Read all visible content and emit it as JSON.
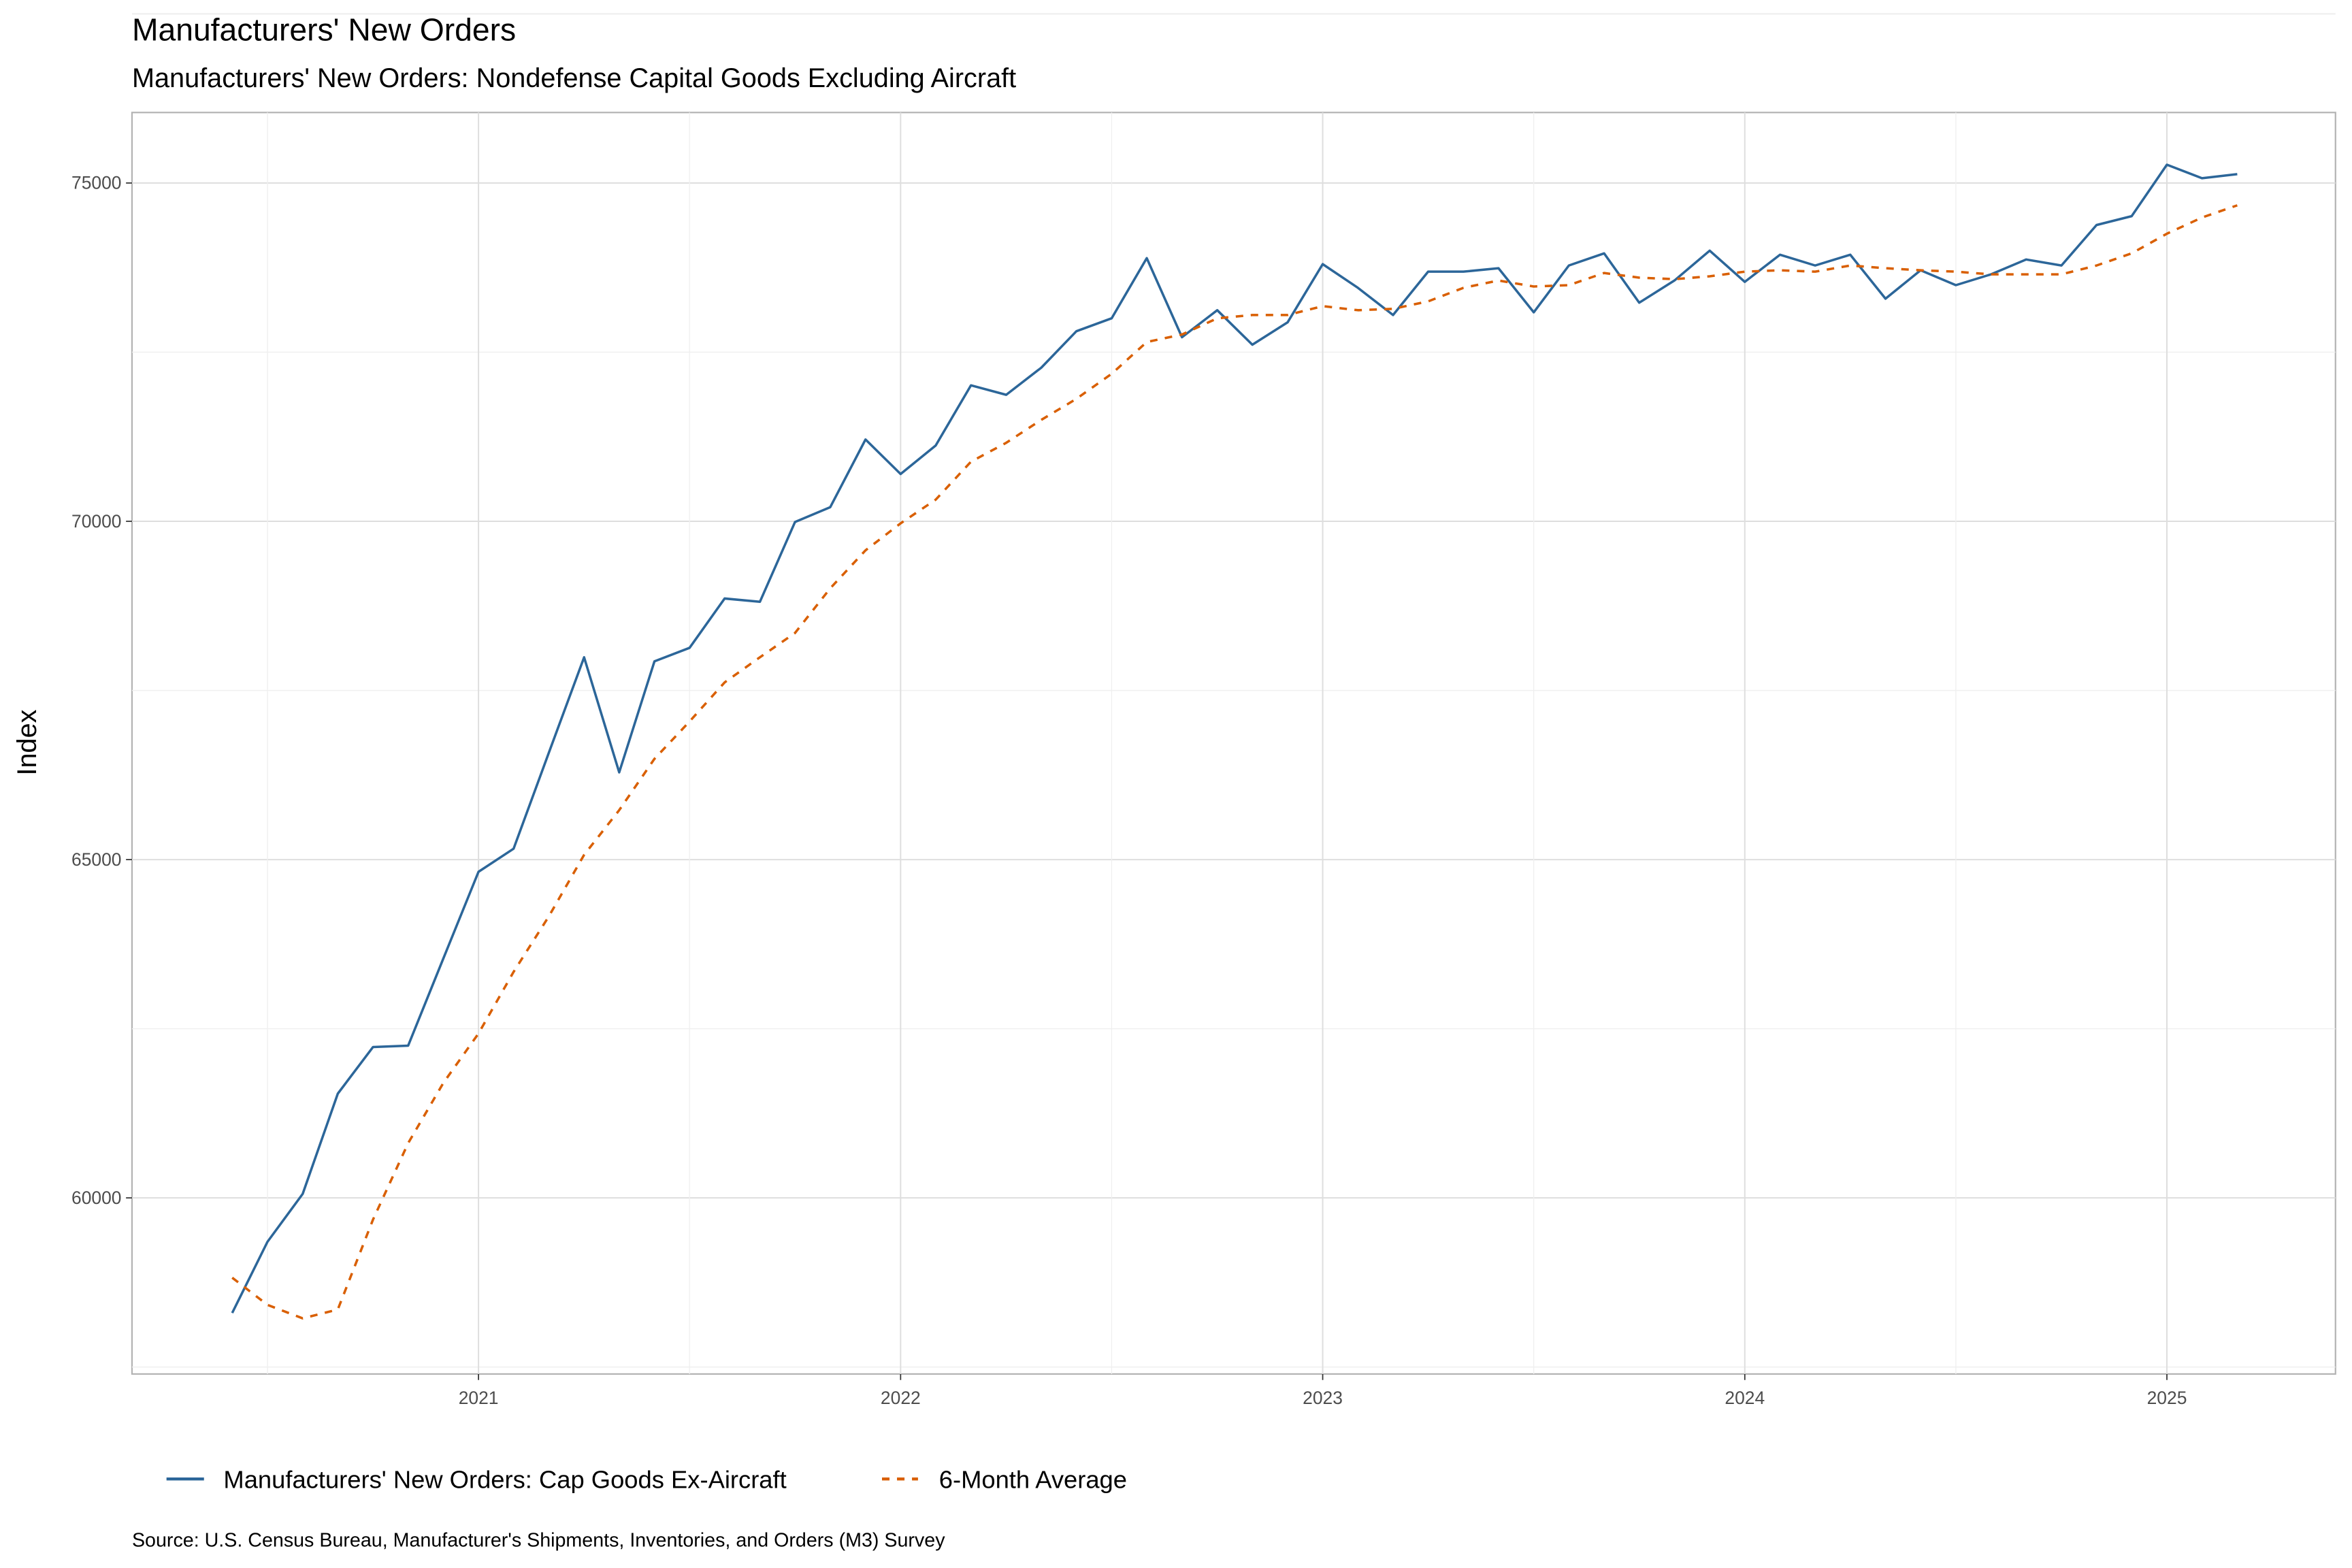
{
  "chart_data": {
    "type": "line",
    "title": "Manufacturers' New Orders",
    "subtitle": "Manufacturers' New Orders: Nondefense Capital Goods Excluding Aircraft",
    "xlabel": "",
    "ylabel": "Index",
    "caption": "Source: U.S. Census Bureau, Manufacturer's Shipments, Inventories, and Orders (M3) Survey",
    "x_start": "2020-06",
    "x_frequency": "monthly",
    "x_ticks": [
      "2021",
      "2022",
      "2023",
      "2024",
      "2025"
    ],
    "y_ticks": [
      60000,
      65000,
      70000,
      75000
    ],
    "ylim": [
      57400,
      76000
    ],
    "grid": true,
    "legend_position": "bottom",
    "series": [
      {
        "name": "Manufacturers' New Orders: Cap Goods Ex-Aircraft",
        "color": "#2c6699",
        "style": "solid",
        "values": [
          58300,
          59350,
          60060,
          61540,
          62230,
          62250,
          63540,
          64820,
          65160,
          66580,
          67990,
          66290,
          67930,
          68130,
          68860,
          68810,
          69990,
          70210,
          71210,
          70700,
          71120,
          72010,
          71870,
          72270,
          72810,
          73000,
          73890,
          72720,
          73120,
          72610,
          72940,
          73800,
          73450,
          73050,
          73690,
          73690,
          73740,
          73090,
          73780,
          73960,
          73230,
          73560,
          74000,
          73540,
          73940,
          73780,
          73940,
          73290,
          73710,
          73490,
          73650,
          73870,
          73780,
          74380,
          74510,
          75270,
          75070,
          75130
        ]
      },
      {
        "name": "6-Month Average",
        "color": "#d95f02",
        "style": "dashed",
        "values": [
          58820,
          58420,
          58220,
          58350,
          59680,
          60810,
          61700,
          62430,
          63340,
          64160,
          65070,
          65730,
          66490,
          67040,
          67620,
          67990,
          68350,
          69010,
          69570,
          69970,
          70320,
          70880,
          71160,
          71500,
          71810,
          72180,
          72650,
          72760,
          73000,
          73050,
          73050,
          73180,
          73120,
          73140,
          73250,
          73450,
          73560,
          73470,
          73490,
          73670,
          73600,
          73580,
          73620,
          73690,
          73710,
          73690,
          73780,
          73740,
          73710,
          73690,
          73650,
          73650,
          73650,
          73780,
          73960,
          74250,
          74490,
          74670
        ]
      }
    ]
  }
}
